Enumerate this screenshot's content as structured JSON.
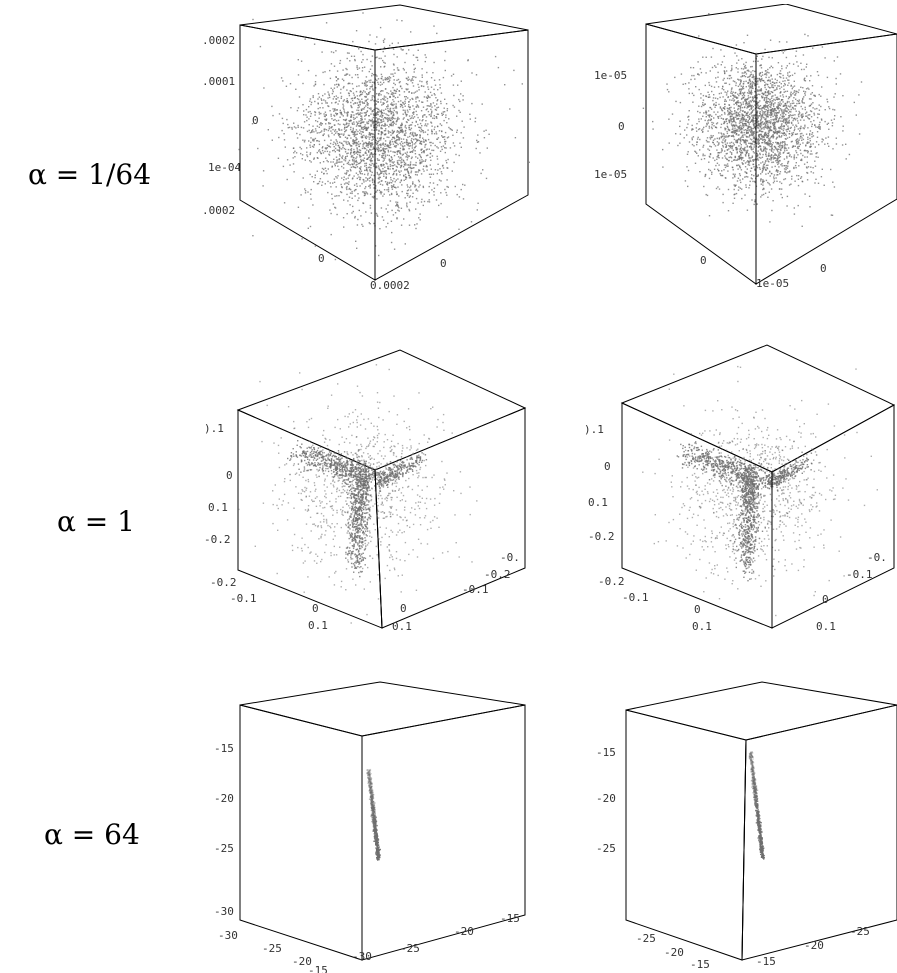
{
  "chart_data": {
    "type": "scatter",
    "panels": [
      {
        "row_label": "α = 1/64",
        "col": 1,
        "shape": "cloud",
        "ticks": {
          "left": [
            ".0002",
            ".0001",
            "0",
            "1e-04",
            ".0002"
          ],
          "bottom_left": [
            "0"
          ],
          "bottom_right": [
            "0.0002",
            "0"
          ]
        }
      },
      {
        "row_label": "α = 1/64",
        "col": 2,
        "shape": "cloud",
        "ticks": {
          "left": [
            "1e-05",
            "0",
            "1e-05"
          ],
          "bottom_left": [
            "0"
          ],
          "bottom_right": [
            "1e-05",
            "0"
          ]
        }
      },
      {
        "row_label": "α = 1",
        "col": 1,
        "shape": "corner",
        "ticks": {
          "left": [
            ").1",
            "0",
            "0.1",
            "-0.2"
          ],
          "bottom_left": [
            "-0.2",
            "-0.1",
            "0",
            "0.1"
          ],
          "bottom_right": [
            "-0.",
            "-0.2",
            "-0.1",
            "0",
            "0.1"
          ]
        }
      },
      {
        "row_label": "α = 1",
        "col": 2,
        "shape": "corner",
        "ticks": {
          "left": [
            ").1",
            "0",
            "0.1",
            "-0.2"
          ],
          "bottom_left": [
            "-0.2",
            "-0.1",
            "0",
            "0.1"
          ],
          "bottom_right": [
            "-0.",
            "-0.1",
            "0",
            "0.1"
          ]
        }
      },
      {
        "row_label": "α = 64",
        "col": 1,
        "shape": "line",
        "ticks": {
          "left": [
            "-15",
            "-20",
            "-25",
            "-30"
          ],
          "bottom_left": [
            "-30",
            "-25",
            "-20",
            "-15"
          ],
          "bottom_right": [
            "-15",
            "-20",
            "-25",
            "-30"
          ]
        }
      },
      {
        "row_label": "α = 64",
        "col": 2,
        "shape": "line",
        "ticks": {
          "left": [
            "-15",
            "-20",
            "-25"
          ],
          "bottom_left": [
            "-25",
            "-20",
            "-15"
          ],
          "bottom_right": [
            "-15",
            "-20",
            "-25"
          ]
        }
      }
    ]
  },
  "rows": [
    {
      "label": "α = 1/64"
    },
    {
      "label": "α = 1"
    },
    {
      "label": "α = 64"
    }
  ],
  "colors": {
    "point": "#6e6e6e",
    "box": "#000000"
  }
}
